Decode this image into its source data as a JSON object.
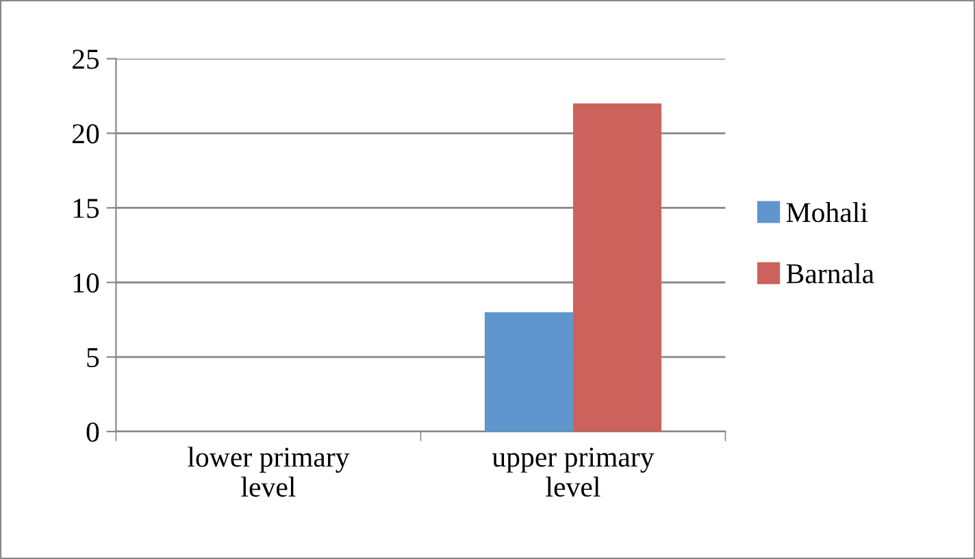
{
  "chart_data": {
    "type": "bar",
    "categories": [
      "lower primary\nlevel",
      "upper primary\nlevel"
    ],
    "series": [
      {
        "name": "Mohali",
        "color": "#5f96cd",
        "values": [
          0,
          8
        ]
      },
      {
        "name": "Barnala",
        "color": "#cd625c",
        "values": [
          0,
          22
        ]
      }
    ],
    "ylim": [
      0,
      25
    ],
    "yticks": [
      0,
      5,
      10,
      15,
      20,
      25
    ],
    "grid": "y",
    "legend": "right"
  }
}
